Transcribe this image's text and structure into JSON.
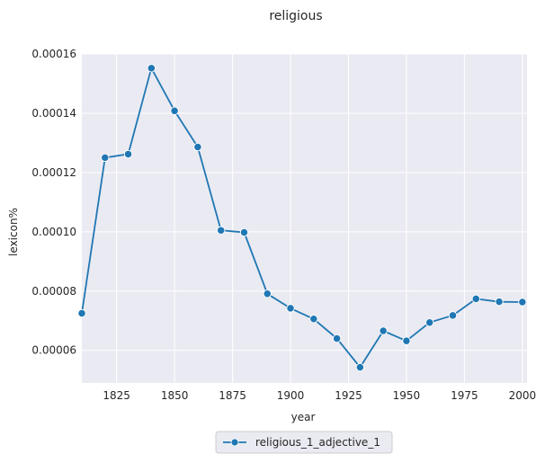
{
  "chart_data": {
    "type": "line",
    "title": "religious",
    "xlabel": "year",
    "ylabel": "lexicon%",
    "xlim": [
      1810,
      2002
    ],
    "ylim": [
      4.9e-05,
      0.00016
    ],
    "xticks": [
      1825,
      1850,
      1875,
      1900,
      1925,
      1950,
      1975,
      2000
    ],
    "xtick_labels": [
      "1825",
      "1850",
      "1875",
      "1900",
      "1925",
      "1950",
      "1975",
      "2000"
    ],
    "yticks": [
      6e-05,
      8e-05,
      0.0001,
      0.00012,
      0.00014,
      0.00016
    ],
    "ytick_labels": [
      "0.00006",
      "0.00008",
      "0.00010",
      "0.00012",
      "0.00014",
      "0.00016"
    ],
    "grid": true,
    "legend_position": "bottom-center",
    "series": [
      {
        "name": "religious_1_adjective_1",
        "color": "#1f77b4",
        "marker": "circle",
        "x": [
          1810,
          1820,
          1830,
          1840,
          1850,
          1860,
          1870,
          1880,
          1890,
          1900,
          1910,
          1920,
          1930,
          1940,
          1950,
          1960,
          1970,
          1980,
          1990,
          2000
        ],
        "y": [
          7.25e-05,
          0.000125,
          0.0001262,
          0.0001552,
          0.0001408,
          0.0001286,
          0.0001005,
          9.98e-05,
          7.91e-05,
          7.42e-05,
          7.06e-05,
          6.4e-05,
          5.43e-05,
          6.66e-05,
          6.32e-05,
          6.94e-05,
          7.18e-05,
          7.74e-05,
          7.64e-05,
          7.63e-05
        ]
      }
    ]
  },
  "colors": {
    "plot_background": "#eaeaf2",
    "grid": "#ffffff",
    "line": "#1f77b4"
  }
}
